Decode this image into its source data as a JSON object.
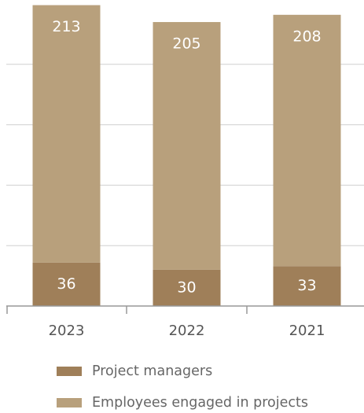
{
  "chart_data": {
    "type": "stacked_bar",
    "categories": [
      "2023",
      "2022",
      "2021"
    ],
    "series": [
      {
        "name": "Project managers",
        "color": "#9f7f59",
        "values": [
          36,
          30,
          33
        ]
      },
      {
        "name": "Employees engaged in projects",
        "color": "#b8a07c",
        "values": [
          213,
          205,
          208
        ]
      }
    ],
    "ylim": [
      0,
      250
    ],
    "yticks": [
      50,
      100,
      150,
      200
    ],
    "grid": true
  }
}
